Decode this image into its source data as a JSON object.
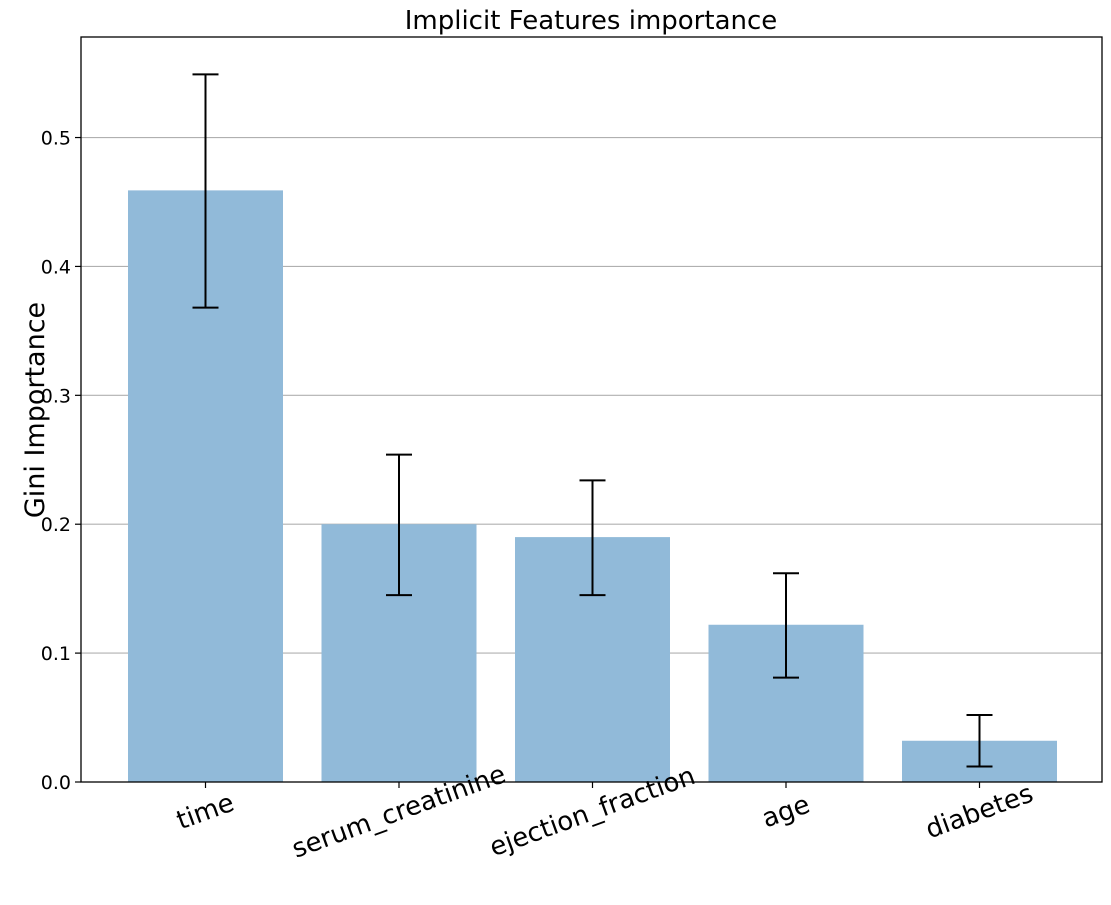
{
  "chart_data": {
    "type": "bar",
    "title": "Implicit Features importance",
    "xlabel": "",
    "ylabel": "Gini Importance",
    "categories": [
      "time",
      "serum_creatinine",
      "ejection_fraction",
      "age",
      "diabetes"
    ],
    "values": [
      0.459,
      0.2,
      0.19,
      0.122,
      0.032
    ],
    "error_low": [
      0.368,
      0.145,
      0.145,
      0.081,
      0.012
    ],
    "error_high": [
      0.549,
      0.254,
      0.234,
      0.162,
      0.052
    ],
    "ylim": [
      0,
      0.578
    ],
    "yticks": [
      0.0,
      0.1,
      0.2,
      0.3,
      0.4,
      0.5
    ],
    "ytick_labels": [
      "0.0",
      "0.1",
      "0.2",
      "0.3",
      "0.4",
      "0.5"
    ],
    "xtick_rotation": -20,
    "grid": "horizontal",
    "colors": {
      "bar": "#91bad9",
      "error": "#000000",
      "grid": "#b0b0b0",
      "axis": "#000000"
    }
  }
}
